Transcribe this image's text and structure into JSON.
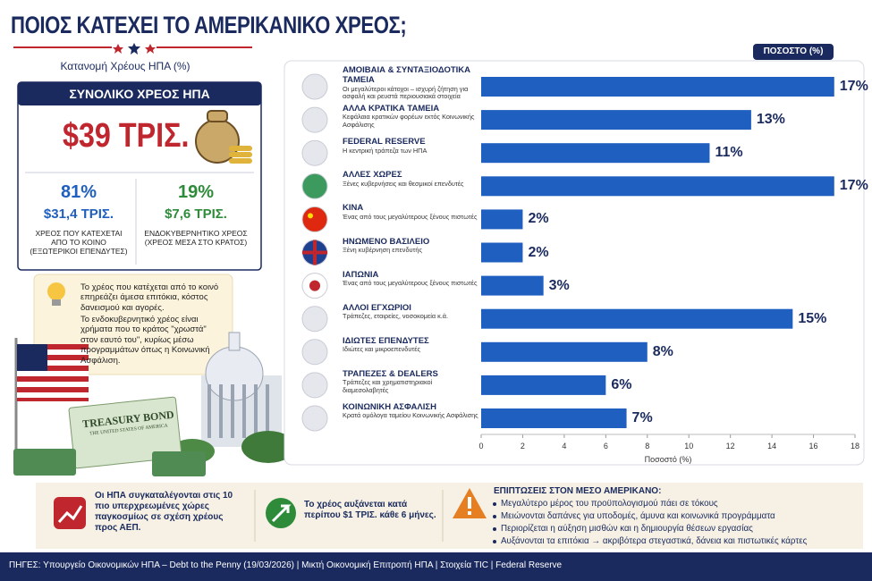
{
  "header": {
    "title": "ΠΟΙΟΣ ΚΑΤΕΧΕΙ ΤΟ ΑΜΕΡΙΚΑΝΙΚΟ ΧΡΕΟΣ;",
    "subtitle": "Κατανομή Χρέους ΗΠΑ (%)"
  },
  "total": {
    "heading": "ΣΥΝΟΛΙΚΟ ΧΡΕΟΣ ΗΠΑ",
    "amount": "$39 ΤΡΙΣ.",
    "public": {
      "share": "81%",
      "amount": "$31,4 ΤΡΙΣ.",
      "label": "ΧΡΕΟΣ ΠΟΥ ΚΑΤΕΧΕΤΑΙ ΑΠΟ ΤΟ ΚΟΙΝΟ (ΕΞΩΤΕΡΙΚΟΙ ΕΠΕΝΔΥΤΕΣ)"
    },
    "intragov": {
      "share": "19%",
      "amount": "$7,6 ΤΡΙΣ.",
      "label": "ΕΝΔΟΚΥΒΕΡΝΗΤΙΚΟ ΧΡΕΟΣ (ΧΡΕΟΣ ΜΕΣΑ ΣΤΟ ΚΡΑΤΟΣ)"
    }
  },
  "info": [
    "Το χρέος που κατέχεται από το κοινό επηρεάζει άμεσα επιτόκια, κόστος δανεισμού και αγορές.",
    "Το ενδοκυβερνητικό χρέος είναι χρήματα που το κράτος \"χρωστά\" στον εαυτό του\", κυρίως μέσω προγραμμάτων όπως η Κοινωνική Ασφάλιση."
  ],
  "illustration": {
    "bond_title": "TREASURY BOND",
    "bond_subtitle": "THE UNITED STATES OF AMERICA"
  },
  "chart_data": {
    "type": "hbar",
    "header": "ΠΟΣΟΣΤΟ (%)",
    "x_label": "Ποσοστό (%)",
    "categories": [
      "ΑΜΟΙΒΑΙΑ & ΣΥΝΤΑΞΙΟΔΟΤΙΚΑ ΤΑΜΕΙΑ",
      "ΑΛΛΑ ΚΡΑΤΙΚΑ ΤΑΜΕΙΑ",
      "FEDERAL RESERVE",
      "ΑΛΛΕΣ ΧΩΡΕΣ",
      "ΚΙΝΑ",
      "ΗΝΩΜΕΝΟ ΒΑΣΙΛΕΙΟ",
      "ΙΑΠΩΝΙΑ",
      "ΑΛΛΟΙ ΕΓΧΩΡΙΟΙ",
      "ΙΔΙΩΤΕΣ ΕΠΕΝΔΥΤΕΣ",
      "ΤΡΑΠΕΖΕΣ & DEALERS",
      "ΚΟΙΝΩΝΙΚΗ ΑΣΦΑΛΙΣΗ"
    ],
    "descriptions": [
      "Οι μεγαλύτεροι κάτοχοι – ισχυρή ζήτηση για ασφαλή και ρευστά περιουσιακά στοιχεία",
      "Κεφάλαια κρατικών φορέων εκτός Κοινωνικής Ασφάλισης",
      "Η κεντρική τράπεζα των ΗΠΑ",
      "Ξένες κυβερνήσεις και θεσμικοί επενδυτές",
      "Ένας από τους μεγαλύτερους ξένους πιστωτές",
      "Ξένη κυβέρνηση επενδυτής",
      "Ένας από τους μεγαλύτερους ξένους πιστωτές",
      "Τράπεζες, εταιρείες, νοσοκομεία κ.ά.",
      "Ιδιώτες και μικροεπενδυτές",
      "Τράπεζες και χρηματιστηριακοί διαμεσολαβητές",
      "Κρατά ομόλογα ταμείου Κοινωνικής Ασφάλισης"
    ],
    "values": [
      17,
      13,
      11,
      17,
      2,
      2,
      3,
      15,
      8,
      6,
      7
    ],
    "value_labels": [
      "17%",
      "13%",
      "11%",
      "17%",
      "2%",
      "2%",
      "3%",
      "15%",
      "8%",
      "6%",
      "7%"
    ],
    "color": "#1f5fbf",
    "xlim": [
      0,
      18
    ],
    "xticks": [
      0,
      2,
      4,
      6,
      8,
      10,
      12,
      14,
      16,
      18
    ],
    "grid": false
  },
  "facts": [
    {
      "text": "Οι ΗΠΑ συγκαταλέγονται στις 10 πιο υπερχρεωμένες χώρες παγκοσμίως σε σχέση χρέους προς ΑΕΠ."
    },
    {
      "text": "Το χρέος αυξάνεται κατά περίπου $1 ΤΡΙΣ. κάθε 6 μήνες."
    }
  ],
  "impacts": {
    "heading": "ΕΠΙΠΤΩΣΕΙΣ ΣΤΟΝ ΜΕΣΟ ΑΜΕΡΙΚΑΝΟ:",
    "items": [
      "Μεγαλύτερο μέρος του προϋπολογισμού πάει σε τόκους",
      "Μειώνονται δαπάνες για υποδομές, άμυνα και κοινωνικά προγράμματα",
      "Περιορίζεται η αύξηση μισθών και η δημιουργία θέσεων εργασίας",
      "Αυξάνονται τα επιτόκια → ακριβότερα στεγαστικά, δάνεια και πιστωτικές κάρτες"
    ]
  },
  "footer": {
    "sources": "ΠΗΓΕΣ: Υπουργείο Οικονομικών ΗΠΑ – Debt to the Penny (19/03/2026) | Μικτή Οικονομική Επιτροπή ΗΠΑ | Στοιχεία TIC | Federal Reserve"
  }
}
